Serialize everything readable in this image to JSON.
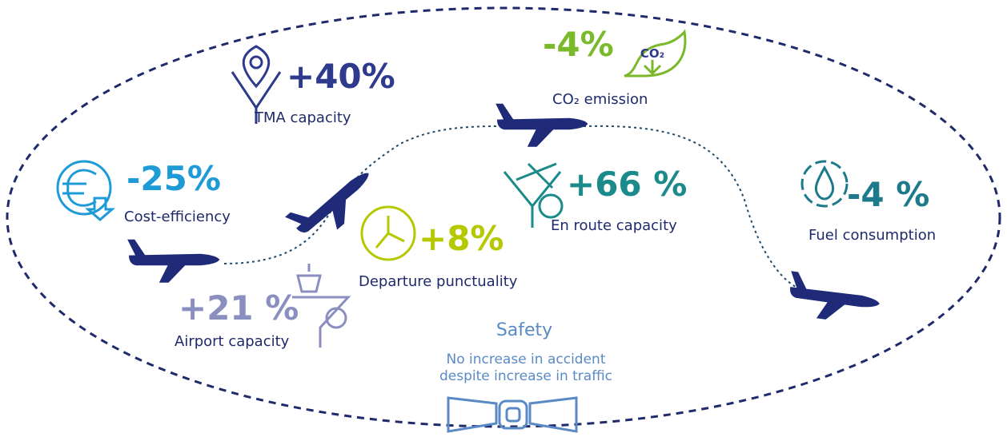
{
  "items": [
    {
      "value": "+40%",
      "label": "TMA capacity"
    },
    {
      "value": "-4%",
      "label": "CO₂ emission",
      "icon_text": "CO₂"
    },
    {
      "value": "-25%",
      "label": "Cost-efficiency"
    },
    {
      "value": "+66 %",
      "label": "En route capacity"
    },
    {
      "value": "-4 %",
      "label": "Fuel consumption"
    },
    {
      "value": "+8%",
      "label": "Departure punctuality"
    },
    {
      "value": "+21 %",
      "label": "Airport capacity"
    }
  ],
  "safety": {
    "title": "Safety",
    "description": [
      "No increase in accident",
      "despite increase in traffic"
    ]
  }
}
